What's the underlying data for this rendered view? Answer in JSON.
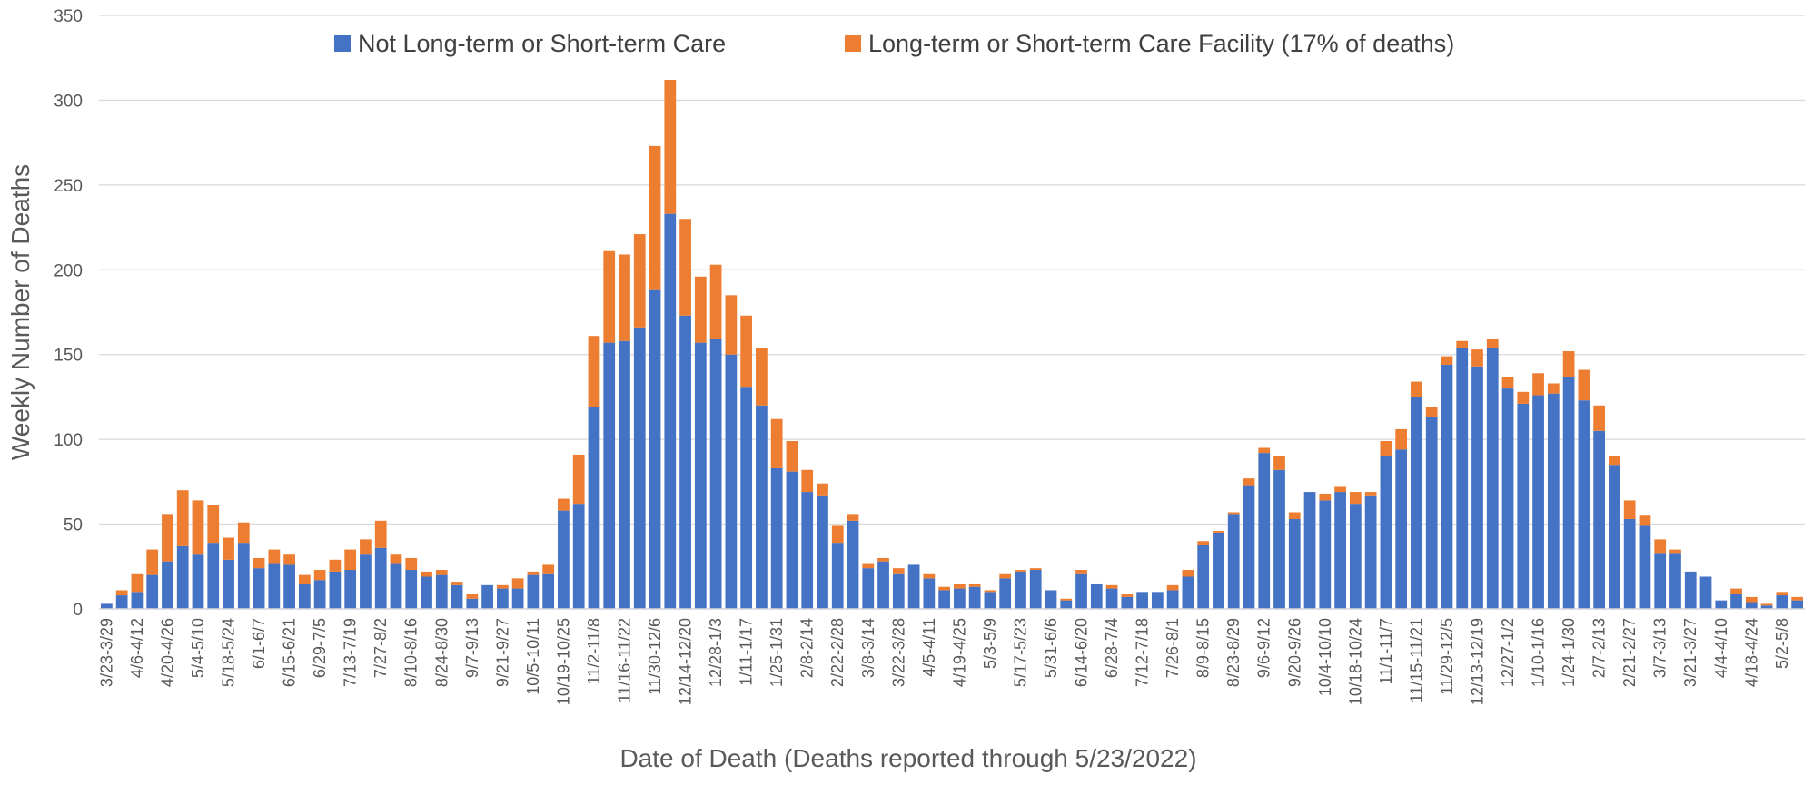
{
  "chart_data": {
    "type": "stacked_bar",
    "x_label": "Date of Death (Deaths reported through 5/23/2022)",
    "y_label": "Weekly Number of Deaths",
    "ylim": [
      0,
      350
    ],
    "yticks": [
      0,
      50,
      100,
      150,
      200,
      250,
      300,
      350
    ],
    "grid": true,
    "legend": "top",
    "categories": [
      "3/23-3/29",
      null,
      "4/6-4/12",
      null,
      "4/20-4/26",
      null,
      "5/4-5/10",
      null,
      "5/18-5/24",
      null,
      "6/1-6/7",
      null,
      "6/15-6/21",
      null,
      "6/29-7/5",
      null,
      "7/13-7/19",
      null,
      "7/27-8/2",
      null,
      "8/10-8/16",
      null,
      "8/24-8/30",
      null,
      "9/7-9/13",
      null,
      "9/21-9/27",
      null,
      "10/5-10/11",
      null,
      "10/19-10/25",
      null,
      "11/2-11/8",
      null,
      "11/16-11/22",
      null,
      "11/30-12/6",
      null,
      "12/14-12/20",
      null,
      "12/28-1/3",
      null,
      "1/11-1/17",
      null,
      "1/25-1/31",
      null,
      "2/8-2/14",
      null,
      "2/22-2/28",
      null,
      "3/8-3/14",
      null,
      "3/22-3/28",
      null,
      "4/5-4/11",
      null,
      "4/19-4/25",
      null,
      "5/3-5/9",
      null,
      "5/17-5/23",
      null,
      "5/31-6/6",
      null,
      "6/14-6/20",
      null,
      "6/28-7/4",
      null,
      "7/12-7/18",
      null,
      "7/26-8/1",
      null,
      "8/9-8/15",
      null,
      "8/23-8/29",
      null,
      "9/6-9/12",
      null,
      "9/20-9/26",
      null,
      "10/4-10/10",
      null,
      "10/18-10/24",
      null,
      "11/1-11/7",
      null,
      "11/15-11/21",
      null,
      "11/29-12/5",
      null,
      "12/13-12/19",
      null,
      "12/27-1/2",
      null,
      "1/10-1/16",
      null,
      "1/24-1/30",
      null,
      "2/7-2/13",
      null,
      "2/21-2/27",
      null,
      "3/7-3/13",
      null,
      "3/21-3/27",
      null,
      "4/4-4/10",
      null,
      "4/18-4/24",
      null,
      "5/2-5/8",
      null
    ],
    "series": [
      {
        "name": "Not Long-term or Short-term Care",
        "color": "#4472c4",
        "values": [
          3,
          8,
          10,
          20,
          28,
          37,
          32,
          39,
          29,
          39,
          24,
          27,
          26,
          15,
          17,
          22,
          23,
          32,
          36,
          27,
          23,
          19,
          20,
          14,
          6,
          14,
          12,
          12,
          20,
          21,
          58,
          62,
          119,
          157,
          158,
          166,
          188,
          233,
          173,
          157,
          159,
          150,
          131,
          120,
          83,
          81,
          69,
          67,
          39,
          52,
          24,
          28,
          21,
          26,
          18,
          11,
          12,
          13,
          10,
          18,
          22,
          23,
          11,
          5,
          21,
          15,
          12,
          7,
          10,
          10,
          11,
          19,
          38,
          45,
          56,
          73,
          92,
          82,
          53,
          69,
          64,
          69,
          62,
          67,
          90,
          94,
          125,
          113,
          144,
          154,
          143,
          154,
          130,
          121,
          126,
          127,
          137,
          123,
          105,
          85,
          53,
          49,
          33,
          33,
          22,
          19,
          5,
          9,
          4,
          2,
          8,
          5
        ]
      },
      {
        "name": "Long-term or Short-term Care Facility (17% of deaths)",
        "color": "#ed7d31",
        "values": [
          0,
          3,
          11,
          15,
          28,
          33,
          32,
          22,
          13,
          12,
          6,
          8,
          6,
          5,
          6,
          7,
          12,
          9,
          16,
          5,
          7,
          3,
          3,
          2,
          3,
          0,
          2,
          6,
          2,
          5,
          7,
          29,
          42,
          54,
          51,
          55,
          85,
          79,
          57,
          39,
          44,
          35,
          42,
          34,
          29,
          18,
          13,
          7,
          10,
          4,
          3,
          2,
          3,
          0,
          3,
          2,
          3,
          2,
          1,
          3,
          1,
          1,
          0,
          1,
          2,
          0,
          2,
          2,
          0,
          0,
          3,
          4,
          2,
          1,
          1,
          4,
          3,
          8,
          4,
          0,
          4,
          3,
          7,
          2,
          9,
          12,
          9,
          6,
          5,
          4,
          10,
          5,
          7,
          7,
          13,
          6,
          15,
          18,
          15,
          5,
          11,
          6,
          8,
          2,
          0,
          0,
          0,
          3,
          3,
          1,
          2,
          2
        ]
      }
    ]
  }
}
